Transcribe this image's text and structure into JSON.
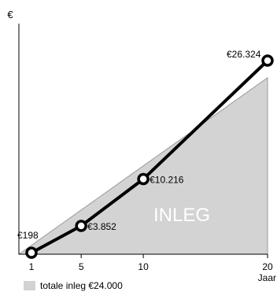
{
  "chart_data": {
    "type": "area",
    "ylabel": "€",
    "xlabel": "Jaar",
    "x_ticks": [
      "1",
      "5",
      "10",
      "20"
    ],
    "x_values": [
      1,
      5,
      10,
      20
    ],
    "xlim": [
      1,
      20
    ],
    "ylim": [
      0,
      26324
    ],
    "grid": false,
    "series": [
      {
        "values": [
          198,
          3852,
          10216,
          26324
        ],
        "data_labels": [
          "€198",
          "€3.852",
          "€10.216",
          "€26.324"
        ],
        "color": "#000000"
      }
    ],
    "area": {
      "label": "INLEG",
      "x": [
        1,
        20
      ],
      "y": [
        0,
        24000
      ],
      "color": "#d3d3d3"
    },
    "legend": {
      "position": "bottom-left",
      "label": "totale inleg €24.000",
      "color": "#d3d3d3"
    }
  }
}
